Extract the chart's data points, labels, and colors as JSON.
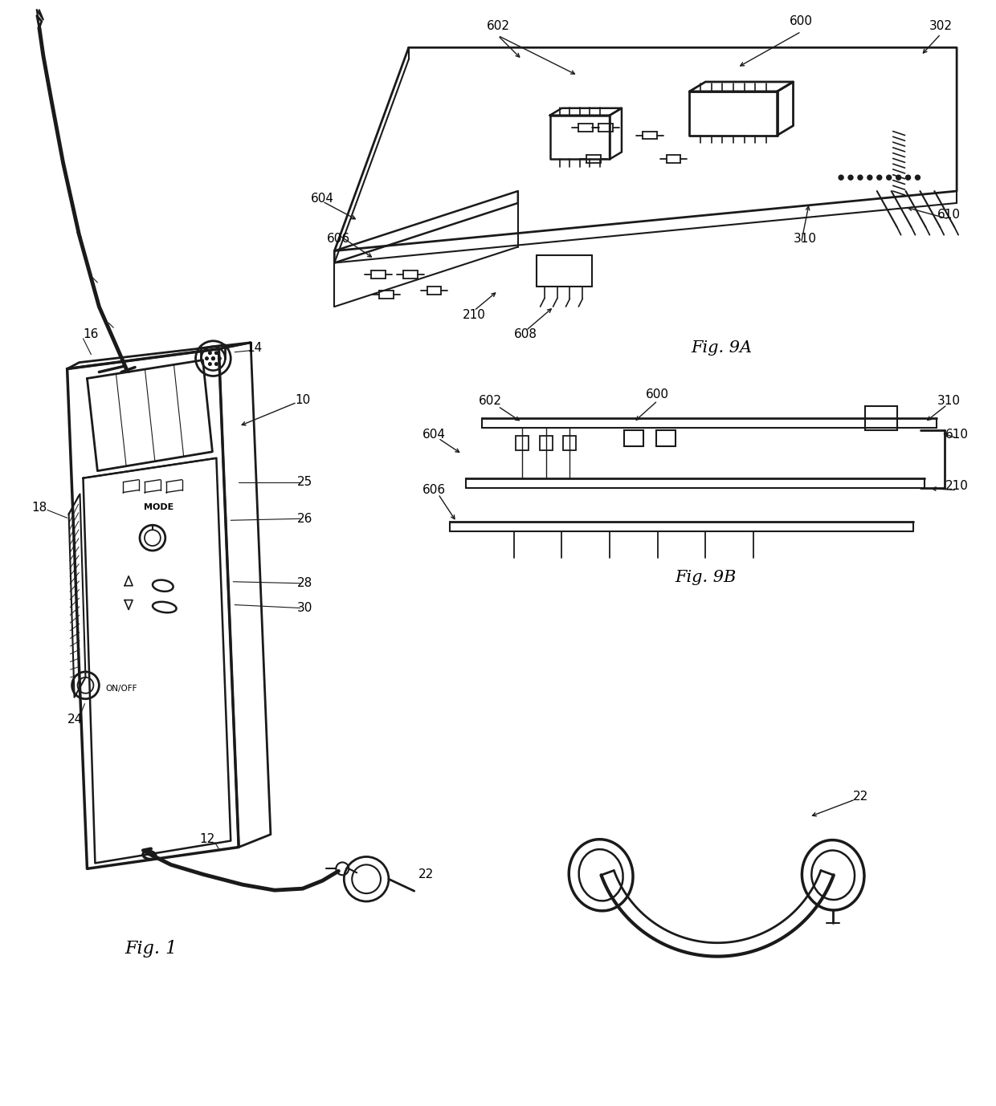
{
  "bg_color": "#ffffff",
  "lc": "#1a1a1a",
  "fig_width": 12.4,
  "fig_height": 13.78,
  "labels": {
    "fig1": "Fig. 1",
    "fig9a": "Fig. 9A",
    "fig9b": "Fig. 9B",
    "n10": "10",
    "n12": "12",
    "n14": "14",
    "n16": "16",
    "n18": "18",
    "n22": "22",
    "n24": "24",
    "n25": "25",
    "n26": "26",
    "n28": "28",
    "n30": "30",
    "n210": "210",
    "n302": "302",
    "n310": "310",
    "n600": "600",
    "n602": "602",
    "n604": "604",
    "n606": "606",
    "n608": "608",
    "n610": "610",
    "mode": "MODE",
    "onoff": "ON/OFF"
  }
}
